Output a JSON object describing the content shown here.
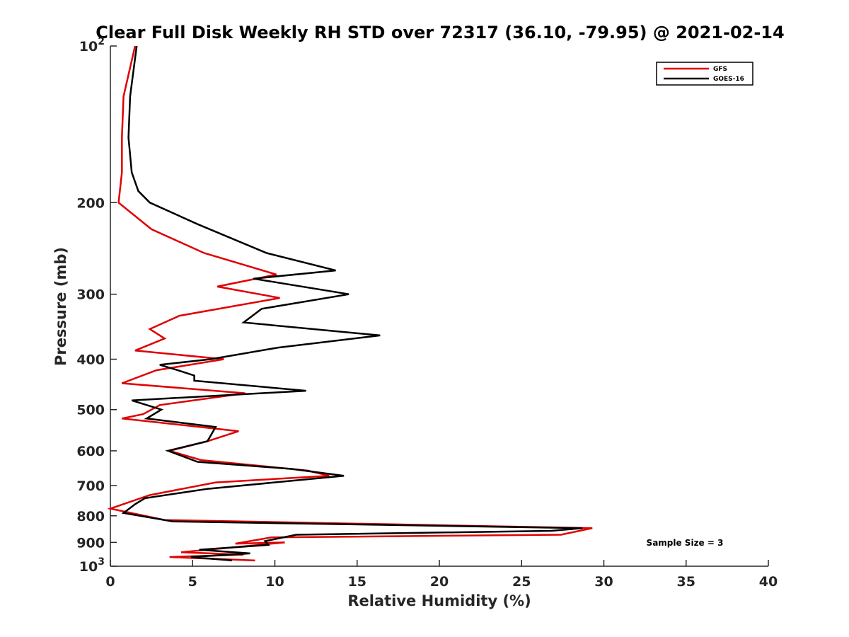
{
  "chart_data": {
    "type": "line",
    "title": "Clear Full Disk Weekly RH STD over 72317 (36.10, -79.95) @ 2021-02-14",
    "xlabel": "Relative Humidity (%)",
    "ylabel": "Pressure (mb)",
    "xlim": [
      0,
      40
    ],
    "ylim": [
      100,
      1000
    ],
    "y_scale": "log",
    "y_reversed": true,
    "grid": false,
    "legend_position": "top-right",
    "x_ticks": [
      "0",
      "5",
      "10",
      "15",
      "20",
      "25",
      "30",
      "35",
      "40"
    ],
    "y_ticks": [
      {
        "value": 100,
        "base": "10",
        "exp": "2"
      },
      {
        "value": 200,
        "label": "200"
      },
      {
        "value": 300,
        "label": "300"
      },
      {
        "value": 400,
        "label": "400"
      },
      {
        "value": 500,
        "label": "500"
      },
      {
        "value": 600,
        "label": "600"
      },
      {
        "value": 700,
        "label": "700"
      },
      {
        "value": 800,
        "label": "800"
      },
      {
        "value": 900,
        "label": "900"
      },
      {
        "value": 1000,
        "base": "10",
        "exp": "3"
      }
    ],
    "series": [
      {
        "name": "GFS",
        "color": "#e00000",
        "points": [
          [
            1.5,
            100
          ],
          [
            0.8,
            125
          ],
          [
            0.7,
            150
          ],
          [
            0.7,
            175
          ],
          [
            0.5,
            200
          ],
          [
            2.5,
            225
          ],
          [
            5.7,
            250
          ],
          [
            10.1,
            275
          ],
          [
            6.5,
            290
          ],
          [
            10.3,
            305
          ],
          [
            4.2,
            330
          ],
          [
            2.4,
            350
          ],
          [
            3.3,
            365
          ],
          [
            1.5,
            385
          ],
          [
            6.9,
            400
          ],
          [
            2.8,
            420
          ],
          [
            0.7,
            445
          ],
          [
            8.2,
            465
          ],
          [
            3,
            490
          ],
          [
            2,
            510
          ],
          [
            0.7,
            520
          ],
          [
            7.8,
            550
          ],
          [
            5.9,
            575
          ],
          [
            3.6,
            600
          ],
          [
            5.5,
            625
          ],
          [
            12,
            655
          ],
          [
            13.3,
            670
          ],
          [
            6.4,
            690
          ],
          [
            2.4,
            730
          ],
          [
            0,
            775
          ],
          [
            3.3,
            815
          ],
          [
            29.3,
            845
          ],
          [
            27.4,
            870
          ],
          [
            9.8,
            880
          ],
          [
            7.6,
            905
          ],
          [
            10.6,
            900
          ],
          [
            4.3,
            940
          ],
          [
            8.1,
            950
          ],
          [
            3.6,
            960
          ],
          [
            8.8,
            975
          ]
        ]
      },
      {
        "name": "GOES-16",
        "color": "#000000",
        "points": [
          [
            1.6,
            100
          ],
          [
            1.2,
            125
          ],
          [
            1.1,
            150
          ],
          [
            1.3,
            175
          ],
          [
            1.7,
            190
          ],
          [
            2.4,
            200
          ],
          [
            5.3,
            220
          ],
          [
            9.5,
            250
          ],
          [
            13.7,
            270
          ],
          [
            8.7,
            280
          ],
          [
            14.5,
            300
          ],
          [
            9.2,
            320
          ],
          [
            8.1,
            340
          ],
          [
            16.4,
            360
          ],
          [
            10.2,
            380
          ],
          [
            6.1,
            400
          ],
          [
            3,
            410
          ],
          [
            4.1,
            420
          ],
          [
            5.1,
            430
          ],
          [
            5.1,
            440
          ],
          [
            11.9,
            460
          ],
          [
            1.3,
            480
          ],
          [
            3.1,
            500
          ],
          [
            2.2,
            520
          ],
          [
            6.4,
            540
          ],
          [
            5.9,
            575
          ],
          [
            3.5,
            600
          ],
          [
            5.3,
            630
          ],
          [
            11,
            650
          ],
          [
            14.2,
            670
          ],
          [
            5.9,
            710
          ],
          [
            2.1,
            740
          ],
          [
            1.5,
            760
          ],
          [
            0.8,
            790
          ],
          [
            3.8,
            820
          ],
          [
            28.7,
            845
          ],
          [
            26.8,
            855
          ],
          [
            11.3,
            870
          ],
          [
            9.4,
            895
          ],
          [
            9.6,
            910
          ],
          [
            5.4,
            930
          ],
          [
            8.5,
            945
          ],
          [
            4.9,
            960
          ],
          [
            7.4,
            975
          ]
        ]
      }
    ],
    "annotations": [
      "Sample Size = 3"
    ]
  }
}
